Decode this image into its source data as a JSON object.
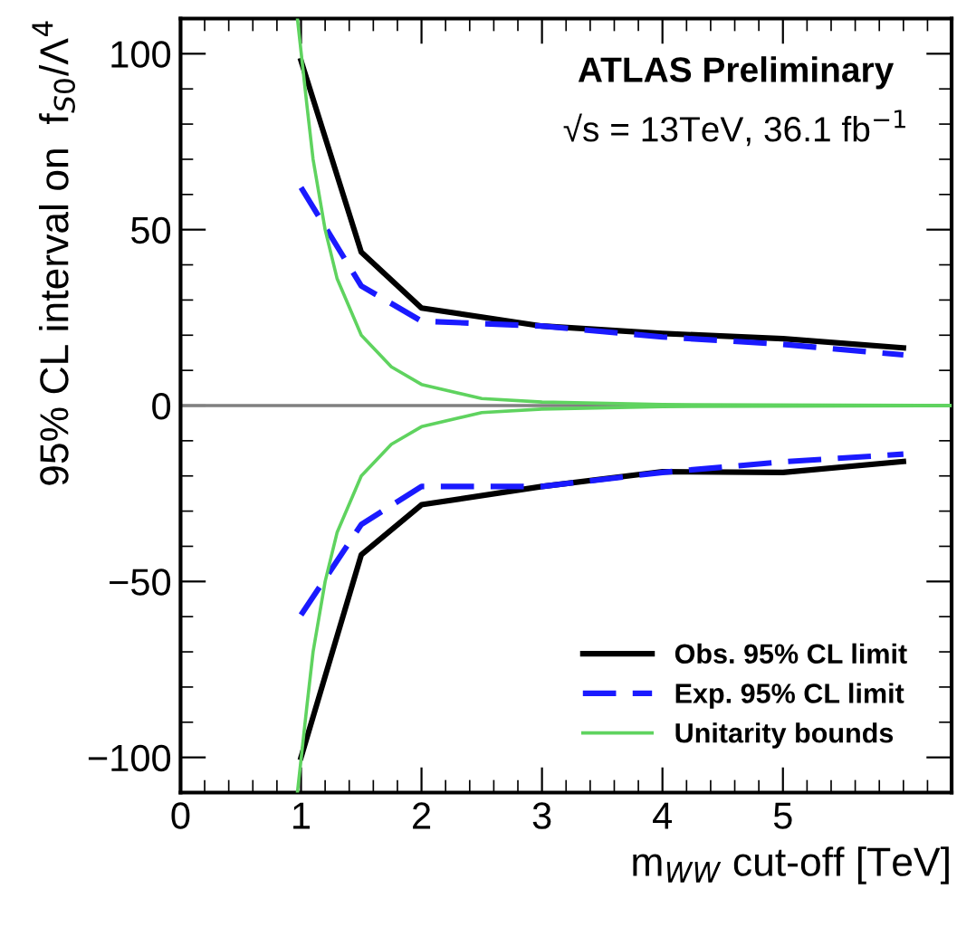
{
  "chart_data": {
    "type": "line",
    "xlabel": "m$_{WW}$ cut-off [TeV]",
    "ylabel": "95% CL interval on  f$_{S0}$/Λ$^{4}$",
    "annotations": [
      "ATLAS Preliminary",
      "√s = 13TeV, 36.1 fb$^{−1}$"
    ],
    "xlim": [
      0,
      6.4
    ],
    "xticks": [
      0,
      1,
      2,
      3,
      4,
      5
    ],
    "ylim": [
      -110,
      110
    ],
    "yticks": [
      -100,
      -50,
      0,
      50,
      100
    ],
    "series": [
      {
        "name": "Obs. 95% CL limit",
        "color": "#000000",
        "line_style": "solid",
        "x": [
          1,
          1.5,
          2,
          3,
          4,
          5,
          6
        ],
        "values": [
          98,
          43.6,
          27.7,
          22.6,
          20.5,
          19,
          16.4
        ]
      },
      {
        "name": "Exp. 95% CL limit",
        "color": "#1a1aff",
        "line_style": "dashed",
        "x": [
          1,
          1.5,
          2,
          3,
          4,
          5,
          6
        ],
        "values": [
          62,
          34,
          24,
          22.6,
          19.5,
          17.4,
          14.4
        ]
      },
      {
        "name": "Unitarity bounds",
        "color": "#5fd35f",
        "line_style": "solid",
        "x": [
          0.97,
          1.05,
          1.1,
          1.2,
          1.3,
          1.5,
          1.75,
          2,
          2.5,
          3,
          4,
          6.4
        ],
        "values": [
          110,
          85,
          70,
          50,
          36,
          20,
          11,
          6,
          2,
          1,
          0.3,
          0
        ]
      },
      {
        "color": "#000000",
        "line_style": "solid",
        "x": [
          1,
          1.5,
          2,
          3,
          4,
          5,
          6
        ],
        "values": [
          -100,
          -42.4,
          -28.2,
          -23,
          -18.8,
          -19,
          -15.9
        ]
      },
      {
        "color": "#1a1aff",
        "line_style": "dashed",
        "x": [
          1,
          1.5,
          2,
          3,
          4,
          5,
          6
        ],
        "values": [
          -59.5,
          -33.8,
          -23,
          -23,
          -19,
          -16,
          -13.8
        ]
      },
      {
        "color": "#5fd35f",
        "line_style": "solid",
        "x": [
          0.97,
          1.05,
          1.1,
          1.2,
          1.3,
          1.5,
          1.75,
          2,
          2.5,
          3,
          4,
          6.4
        ],
        "values": [
          -110,
          -85,
          -70,
          -50,
          -36,
          -20,
          -11,
          -6,
          -2,
          -1,
          -0.3,
          0
        ]
      }
    ],
    "ref_lines": [
      {
        "axis": "y",
        "value": 0,
        "color": "#808080"
      }
    ],
    "legend": "bottom right",
    "grid": false,
    "marker": "none"
  }
}
